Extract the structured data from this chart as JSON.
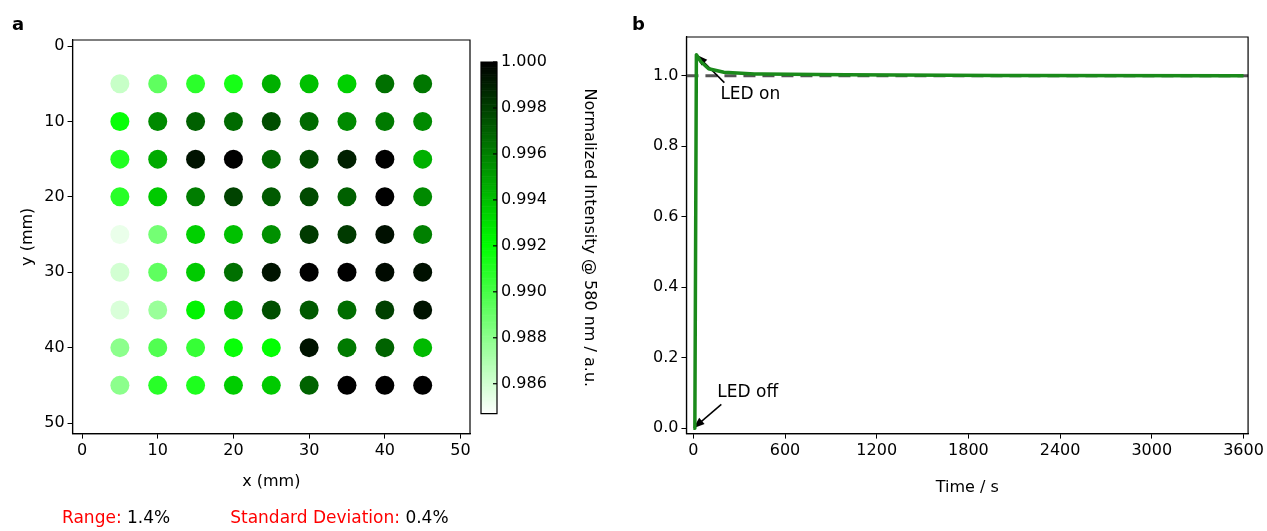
{
  "chart_data": [
    {
      "type": "scatter",
      "title": "a",
      "xlabel": "x (mm)",
      "ylabel": "y (mm)",
      "clabel": "Normalized Intensity @ 580 nm / a.u.",
      "xlim": [
        -1.25,
        51.25
      ],
      "ylim": [
        51.4,
        -0.8
      ],
      "xticks": [
        0,
        10,
        20,
        30,
        40,
        50
      ],
      "yticks": [
        0,
        10,
        20,
        30,
        40,
        50
      ],
      "clim": [
        0.9847,
        1.0
      ],
      "cticks": [
        {
          "value": 0.986,
          "label": "0.986"
        },
        {
          "value": 0.988,
          "label": "0.988"
        },
        {
          "value": 0.99,
          "label": "0.990"
        },
        {
          "value": 0.992,
          "label": "0.992"
        },
        {
          "value": 0.994,
          "label": "0.994"
        },
        {
          "value": 0.996,
          "label": "0.996"
        },
        {
          "value": 0.998,
          "label": "0.998"
        },
        {
          "value": 1.0,
          "label": "1.000"
        }
      ],
      "marker": "circle",
      "grid": false,
      "legend": false,
      "annotations": [
        "Range: 1.4%",
        "Standard Deviation: 0.4%"
      ],
      "series": [
        {
          "x": [
            5,
            10,
            15,
            20,
            25,
            30,
            35,
            40,
            45,
            5,
            10,
            15,
            20,
            25,
            30,
            35,
            40,
            45,
            5,
            10,
            15,
            20,
            25,
            30,
            35,
            40,
            45,
            5,
            10,
            15,
            20,
            25,
            30,
            35,
            40,
            45,
            5,
            10,
            15,
            20,
            25,
            30,
            35,
            40,
            45,
            5,
            10,
            15,
            20,
            25,
            30,
            35,
            40,
            45,
            5,
            10,
            15,
            20,
            25,
            30,
            35,
            40,
            45,
            5,
            10,
            15,
            20,
            25,
            30,
            35,
            40,
            45,
            5,
            10,
            15,
            20,
            25,
            30,
            35,
            40,
            45
          ],
          "values": [
            5,
            5,
            5,
            5,
            5,
            5,
            5,
            5,
            5,
            10,
            10,
            10,
            10,
            10,
            10,
            10,
            10,
            10,
            15,
            15,
            15,
            15,
            15,
            15,
            15,
            15,
            15,
            20,
            20,
            20,
            20,
            20,
            20,
            20,
            20,
            20,
            25,
            25,
            25,
            25,
            25,
            25,
            25,
            25,
            25,
            30,
            30,
            30,
            30,
            30,
            30,
            30,
            30,
            30,
            35,
            35,
            35,
            35,
            35,
            35,
            35,
            35,
            35,
            40,
            40,
            40,
            40,
            40,
            40,
            40,
            40,
            40,
            45,
            45,
            45,
            45,
            45,
            45,
            45,
            45,
            45
          ],
          "cvalues": [
            0.9863,
            0.9893,
            0.9908,
            0.9914,
            0.9945,
            0.994,
            0.9935,
            0.9965,
            0.9963,
            0.9918,
            0.9957,
            0.997,
            0.9967,
            0.9976,
            0.9967,
            0.9957,
            0.9962,
            0.9957,
            0.9911,
            0.9947,
            0.9994,
            1.0,
            0.9968,
            0.9977,
            0.999,
            1.0,
            0.9945,
            0.9909,
            0.9937,
            0.9961,
            0.9979,
            0.9972,
            0.9977,
            0.997,
            1.0,
            0.9957,
            0.9853,
            0.9887,
            0.9935,
            0.994,
            0.9955,
            0.9982,
            0.9982,
            0.9995,
            0.996,
            0.986,
            0.9893,
            0.9937,
            0.9965,
            0.9994,
            1.0,
            1.0,
            0.9997,
            0.9995,
            0.9858,
            0.9876,
            0.9924,
            0.994,
            0.9975,
            0.9972,
            0.9966,
            0.998,
            0.9994,
            0.988,
            0.9897,
            0.9905,
            0.9918,
            0.992,
            0.9994,
            0.9962,
            0.9969,
            0.9942,
            0.988,
            0.9909,
            0.9912,
            0.9936,
            0.9937,
            0.9969,
            1.0,
            1.0,
            1.0
          ]
        }
      ]
    },
    {
      "type": "line",
      "title": "b",
      "xlabel": "Time / s",
      "xlim": [
        -45,
        3630
      ],
      "ylim": [
        -0.015,
        1.11
      ],
      "xticks": [
        0,
        600,
        1200,
        1800,
        2400,
        3000,
        3600
      ],
      "yticks": [
        {
          "value": 0,
          "label": "0.0"
        },
        {
          "value": 0.2,
          "label": "0.2"
        },
        {
          "value": 0.4,
          "label": "0.4"
        },
        {
          "value": 0.6,
          "label": "0.6"
        },
        {
          "value": 0.8,
          "label": "0.8"
        },
        {
          "value": 1,
          "label": "1.0"
        }
      ],
      "grid": false,
      "legend": false,
      "marker": "none",
      "line_style": "solid",
      "ref_lines": [
        {
          "axis": "y",
          "value": 1.0,
          "color": "#555555",
          "line_style": "dashed"
        }
      ],
      "annotations": [
        {
          "text": "LED on",
          "x": 20,
          "y": 1.06
        },
        {
          "text": "LED off",
          "x": 0,
          "y": 0
        }
      ],
      "series": [
        {
          "color": "#1a8a1a",
          "x": [
            0,
            10,
            20,
            50,
            100,
            200,
            400,
            1000,
            2000,
            3600
          ],
          "values": [
            0,
            0,
            1.06,
            1.04,
            1.02,
            1.01,
            1.005,
            1.003,
            1.001,
            1.0
          ]
        }
      ]
    }
  ]
}
